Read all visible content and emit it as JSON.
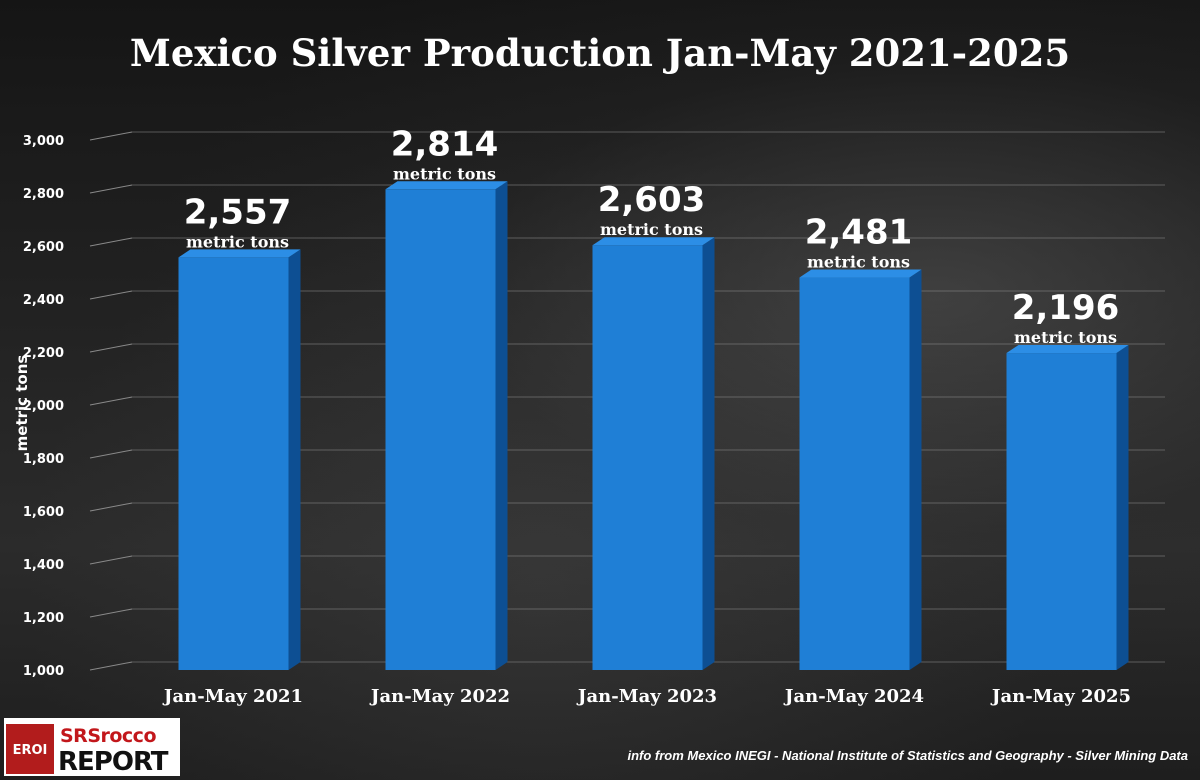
{
  "colors": {
    "bar_front": "#1f7fd6",
    "bar_side": "#0d4f93",
    "bar_top": "#2c8ee6",
    "grid": "#8a8a8a",
    "text": "#ffffff"
  },
  "chart_data": {
    "type": "bar",
    "title": "Mexico Silver Production Jan-May 2021-2025",
    "ylabel": "metric tons",
    "xlabel": "",
    "ylim": [
      1000,
      3000
    ],
    "yticks": [
      "1,000",
      "1,200",
      "1,400",
      "1,600",
      "1,800",
      "2,000",
      "2,200",
      "2,400",
      "2,600",
      "2,800",
      "3,000"
    ],
    "ytick_values": [
      1000,
      1200,
      1400,
      1600,
      1800,
      2000,
      2200,
      2400,
      2600,
      2800,
      3000
    ],
    "grid": true,
    "categories": [
      "Jan-May 2021",
      "Jan-May 2022",
      "Jan-May 2023",
      "Jan-May 2024",
      "Jan-May 2025"
    ],
    "values": [
      2557,
      2814,
      2603,
      2481,
      2196
    ],
    "value_labels": [
      "2,557",
      "2,814",
      "2,603",
      "2,481",
      "2,196"
    ],
    "unit_label": "metric tons"
  },
  "logo": {
    "badge": "EROI",
    "line1": "SRSrocco",
    "line2": "REPORT"
  },
  "footer": {
    "source": "info from Mexico INEGI - National Institute of Statistics and Geography - Silver Mining Data"
  }
}
